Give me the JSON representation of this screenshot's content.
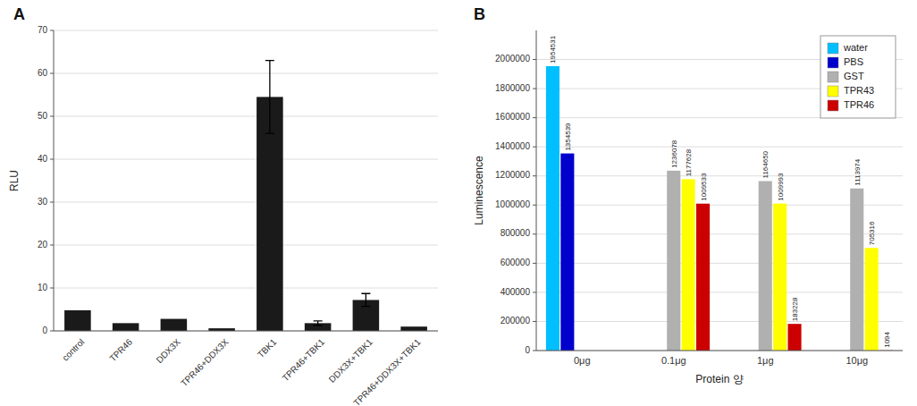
{
  "chart_data": [
    {
      "type": "bar",
      "title": "A",
      "categories": [
        "control",
        "TPR46",
        "DDX3X",
        "TPR46+DDX3X",
        "TBK1",
        "TPR46+TBK1",
        "DDX3X+TBK1",
        "TPR46+DDX3X+TBK1"
      ],
      "values": [
        4.8,
        1.8,
        2.8,
        0.6,
        54.5,
        1.8,
        7.2,
        1.0
      ],
      "errors": [
        0.0,
        0.0,
        0.0,
        0.0,
        8.5,
        0.5,
        1.5,
        0.0
      ],
      "color": "#1a1a1a",
      "ylabel": "RLU",
      "ylim": [
        0,
        70
      ],
      "yticks": [
        0,
        10,
        20,
        30,
        40,
        50,
        60,
        70
      ],
      "grid": true
    },
    {
      "type": "bar",
      "title": "B",
      "categories": [
        "0μg",
        "0.1μg",
        "1μg",
        "10μg"
      ],
      "series": [
        {
          "name": "water",
          "color": "#00bfff",
          "values": [
            1954531,
            0,
            0,
            0
          ]
        },
        {
          "name": "PBS",
          "color": "#0000cd",
          "values": [
            1354539,
            0,
            0,
            0
          ]
        },
        {
          "name": "GST",
          "color": "#b0b0b0",
          "values": [
            0,
            1236078,
            1164650,
            1113974
          ]
        },
        {
          "name": "TPR43",
          "color": "#ffff00",
          "values": [
            0,
            1177628,
            1009993,
            705316
          ]
        },
        {
          "name": "TPR46",
          "color": "#cc0000",
          "values": [
            0,
            1009533,
            183228,
            1094
          ]
        }
      ],
      "ylabel": "Luminescence",
      "xlabel": "Protein 양",
      "ylim": [
        0,
        2200000
      ],
      "yticks": [
        0,
        200000,
        400000,
        600000,
        800000,
        1000000,
        1200000,
        1400000,
        1600000,
        1800000,
        2000000
      ],
      "grid": true,
      "data_labels": true,
      "legend": "upper right"
    }
  ]
}
